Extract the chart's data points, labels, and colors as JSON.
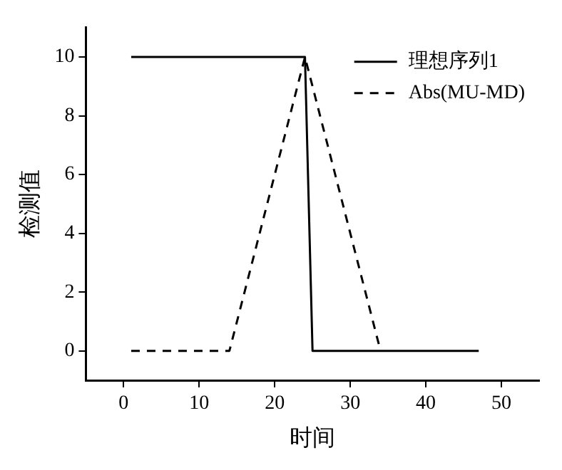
{
  "chart_data": {
    "type": "line",
    "xlabel": "时间",
    "ylabel": "检测值",
    "xlim": [
      -5,
      55
    ],
    "xticks": [
      0,
      10,
      20,
      30,
      40,
      50
    ],
    "ylim": [
      -1,
      11
    ],
    "yticks": [
      0,
      2,
      4,
      6,
      8,
      10
    ],
    "grid": false,
    "legend": "top right",
    "marker": "none",
    "series": [
      {
        "name": "理想序列1",
        "color": "#000000",
        "line_style": "solid",
        "x": [
          1,
          24,
          25,
          47
        ],
        "values": [
          10,
          10,
          0,
          0
        ]
      },
      {
        "name": "Abs(MU-MD)",
        "color": "#000000",
        "line_style": "dashed",
        "x": [
          1,
          14,
          24,
          34
        ],
        "values": [
          0,
          0,
          10,
          0
        ]
      }
    ]
  }
}
